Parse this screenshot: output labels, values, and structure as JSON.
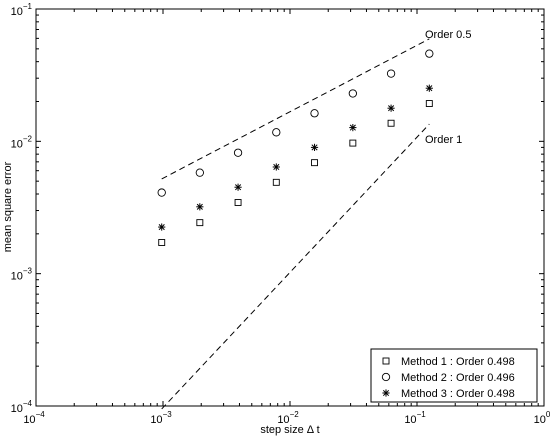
{
  "chart_data": {
    "type": "scatter",
    "xlabel": "step size Δ t",
    "ylabel": "mean square error",
    "xscale": "log",
    "yscale": "log",
    "xlim": [
      0.0001,
      1
    ],
    "ylim": [
      0.0001,
      0.1
    ],
    "x_ticks": [
      {
        "value": 0.0001,
        "mantissa": "10",
        "exp": "−4"
      },
      {
        "value": 0.001,
        "mantissa": "10",
        "exp": "−3"
      },
      {
        "value": 0.01,
        "mantissa": "10",
        "exp": "−2"
      },
      {
        "value": 0.1,
        "mantissa": "10",
        "exp": "−1"
      },
      {
        "value": 1,
        "mantissa": "10",
        "exp": "0"
      }
    ],
    "y_ticks": [
      {
        "value": 0.0001,
        "mantissa": "10",
        "exp": "−4"
      },
      {
        "value": 0.001,
        "mantissa": "10",
        "exp": "−3"
      },
      {
        "value": 0.01,
        "mantissa": "10",
        "exp": "−2"
      },
      {
        "value": 0.1,
        "mantissa": "10",
        "exp": "−1"
      }
    ],
    "grid": false,
    "legend_position": "bottom-right",
    "x": [
      0.000977,
      0.00195,
      0.0039,
      0.0078,
      0.0156,
      0.03125,
      0.0625,
      0.125
    ],
    "series": [
      {
        "name": "Method 1 : Order 0.498",
        "marker": "square",
        "values": [
          0.00172,
          0.00243,
          0.00345,
          0.0049,
          0.0069,
          0.0097,
          0.0137,
          0.0193
        ]
      },
      {
        "name": "Method 2 : Order 0.496",
        "marker": "circle",
        "values": [
          0.0041,
          0.0058,
          0.0082,
          0.0117,
          0.0163,
          0.023,
          0.0325,
          0.046
        ]
      },
      {
        "name": "Method 3 : Order 0.498",
        "marker": "asterisk",
        "values": [
          0.00225,
          0.0032,
          0.0045,
          0.0064,
          0.009,
          0.0127,
          0.0178,
          0.0252
        ]
      }
    ],
    "reference_lines": [
      {
        "label": "Order 0.5",
        "x": [
          0.000977,
          0.125
        ],
        "y": [
          0.0052,
          0.0595
        ]
      },
      {
        "label": "Order 1",
        "x": [
          0.000977,
          0.125
        ],
        "y": [
          9.5e-05,
          0.0135
        ]
      }
    ]
  }
}
